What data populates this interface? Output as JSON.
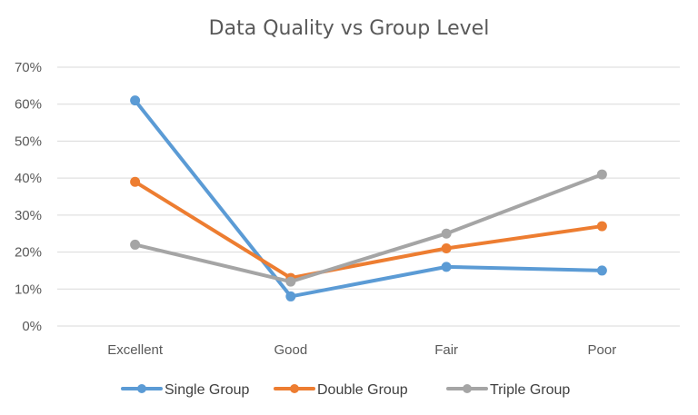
{
  "chart_data": {
    "type": "line",
    "title": "Data Quality vs Group Level",
    "xlabel": "",
    "ylabel": "",
    "categories": [
      "Excellent",
      "Good",
      "Fair",
      "Poor"
    ],
    "ylim": [
      0,
      70
    ],
    "yticks": [
      "0%",
      "10%",
      "20%",
      "30%",
      "40%",
      "50%",
      "60%",
      "70%"
    ],
    "ytick_values": [
      0,
      10,
      20,
      30,
      40,
      50,
      60,
      70
    ],
    "grid": true,
    "legend_position": "bottom",
    "series": [
      {
        "name": "Single Group",
        "color": "#5b9bd5",
        "values": [
          61,
          8,
          16,
          15
        ]
      },
      {
        "name": "Double Group",
        "color": "#ed7d31",
        "values": [
          39,
          13,
          21,
          27
        ]
      },
      {
        "name": "Triple Group",
        "color": "#a5a5a5",
        "values": [
          22,
          12,
          25,
          41
        ]
      }
    ]
  }
}
